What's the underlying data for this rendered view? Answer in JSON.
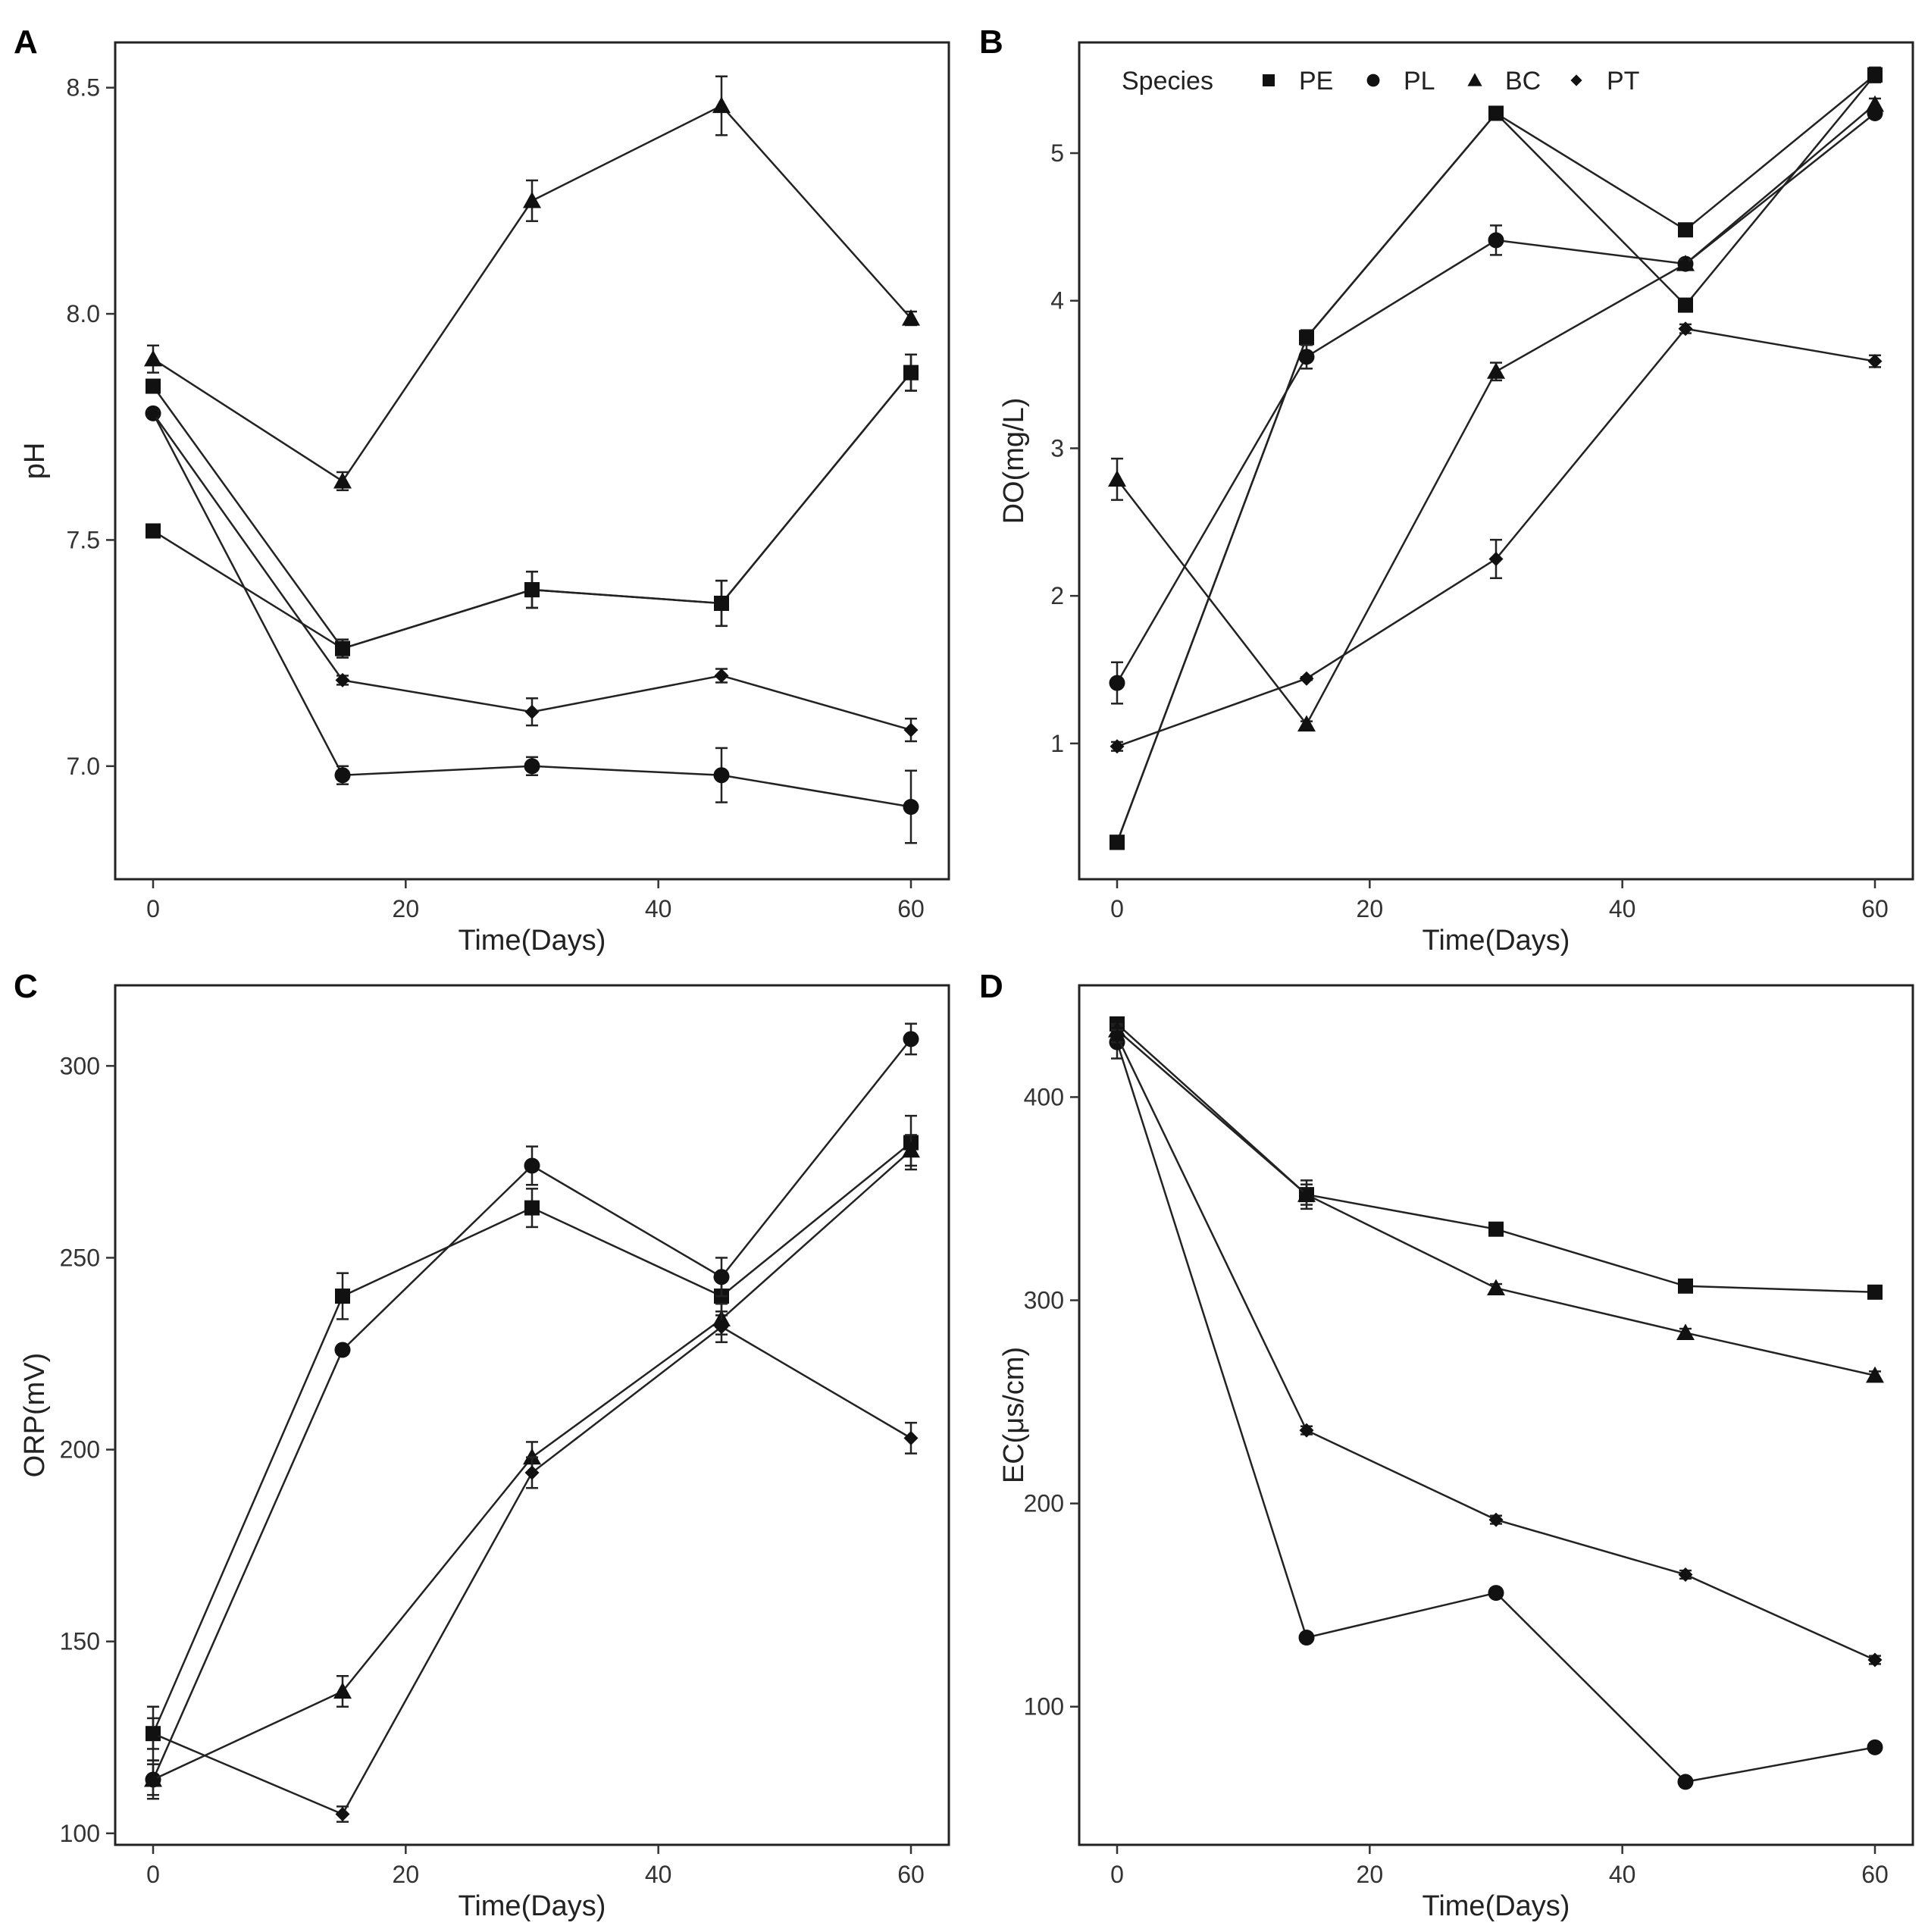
{
  "figure": {
    "species_legend": {
      "title": "Species",
      "entries": [
        {
          "label": "PE",
          "marker": "square"
        },
        {
          "label": "PL",
          "marker": "circle"
        },
        {
          "label": "BC",
          "marker": "triangle"
        },
        {
          "label": "PT",
          "marker": "diamond"
        }
      ]
    }
  },
  "chart_data": [
    {
      "panel": "A",
      "type": "line",
      "xlabel": "Time(Days)",
      "ylabel": "pH",
      "xlim": [
        -3,
        63
      ],
      "ylim": [
        6.75,
        8.6
      ],
      "xticks": [
        0,
        20,
        40,
        60
      ],
      "yticks": [
        7.0,
        7.5,
        8.0,
        8.5
      ],
      "ytick_labels": [
        "7.0",
        "7.5",
        "8.0",
        "8.5"
      ],
      "x": [
        0,
        15,
        30,
        45,
        60
      ],
      "legend_shown": false,
      "series": [
        {
          "name": "PE",
          "marker": "square",
          "values": [
            7.52,
            7.26,
            7.39,
            7.36,
            7.87
          ],
          "err": [
            0.01,
            0.02,
            0.04,
            0.05,
            0.04
          ]
        },
        {
          "name": "PE",
          "marker": "square",
          "values": [
            7.84,
            7.26,
            7.39,
            7.36,
            7.87
          ],
          "err": [
            0.01,
            0.02,
            0.04,
            0.05,
            0.04
          ]
        },
        {
          "name": "PL",
          "marker": "circle",
          "values": [
            7.78,
            6.98,
            7.0,
            6.98,
            6.91
          ],
          "err": [
            0.005,
            0.02,
            0.02,
            0.06,
            0.08
          ]
        },
        {
          "name": "BC",
          "marker": "triangle",
          "values": [
            7.9,
            7.63,
            8.25,
            8.46,
            7.99
          ],
          "err": [
            0.03,
            0.02,
            0.045,
            0.065,
            0.015
          ]
        },
        {
          "name": "PT",
          "marker": "diamond",
          "values": [
            7.78,
            7.19,
            7.12,
            7.2,
            7.08
          ],
          "err": [
            0.005,
            0.01,
            0.03,
            0.015,
            0.025
          ]
        }
      ]
    },
    {
      "panel": "B",
      "type": "line",
      "xlabel": "Time(Days)",
      "ylabel": "DO(mg/L)",
      "xlim": [
        -3,
        63
      ],
      "ylim": [
        0.08,
        5.75
      ],
      "xticks": [
        0,
        20,
        40,
        60
      ],
      "yticks": [
        1,
        2,
        3,
        4,
        5
      ],
      "ytick_labels": [
        "1",
        "2",
        "3",
        "4",
        "5"
      ],
      "x": [
        0,
        15,
        30,
        45,
        60
      ],
      "legend_shown": true,
      "series": [
        {
          "name": "PE",
          "marker": "square",
          "values": [
            0.33,
            3.75,
            5.27,
            3.97,
            5.53
          ],
          "err": [
            0.02,
            0.05,
            0.03,
            0.02,
            0.05
          ]
        },
        {
          "name": "PE",
          "marker": "square",
          "values": [
            0.33,
            3.75,
            5.27,
            4.48,
            5.53
          ],
          "err": [
            0.02,
            0.05,
            0.03,
            0.04,
            0.05
          ]
        },
        {
          "name": "PL",
          "marker": "circle",
          "values": [
            1.41,
            3.62,
            4.41,
            4.25,
            5.27
          ],
          "err": [
            0.14,
            0.08,
            0.1,
            0.03,
            0.02
          ]
        },
        {
          "name": "BC",
          "marker": "triangle",
          "values": [
            2.79,
            1.13,
            3.52,
            4.25,
            5.33
          ],
          "err": [
            0.14,
            0.02,
            0.06,
            0.03,
            0.04
          ]
        },
        {
          "name": "PT",
          "marker": "diamond",
          "values": [
            0.98,
            1.44,
            2.25,
            3.81,
            3.59
          ],
          "err": [
            0.03,
            0.01,
            0.13,
            0.03,
            0.04
          ]
        }
      ]
    },
    {
      "panel": "C",
      "type": "line",
      "xlabel": "Time(Days)",
      "ylabel": "ORP(mV)",
      "xlim": [
        -3,
        63
      ],
      "ylim": [
        97,
        321
      ],
      "xticks": [
        0,
        20,
        40,
        60
      ],
      "yticks": [
        100,
        150,
        200,
        250,
        300
      ],
      "ytick_labels": [
        "100",
        "150",
        "200",
        "250",
        "300"
      ],
      "x": [
        0,
        15,
        30,
        45,
        60
      ],
      "legend_shown": false,
      "series": [
        {
          "name": "PE",
          "marker": "square",
          "values": [
            126,
            240,
            263,
            240,
            280
          ],
          "err": [
            7,
            6,
            5,
            5,
            7
          ]
        },
        {
          "name": "PL",
          "marker": "circle",
          "values": [
            114,
            226,
            274,
            245,
            307
          ],
          "err": [
            5,
            1,
            5,
            5,
            4
          ]
        },
        {
          "name": "BC",
          "marker": "triangle",
          "values": [
            114,
            137,
            198,
            234,
            278
          ],
          "err": [
            4,
            4,
            4,
            4,
            4
          ]
        },
        {
          "name": "PT",
          "marker": "diamond",
          "values": [
            126,
            105,
            194,
            232,
            203
          ],
          "err": [
            4,
            2,
            4,
            4,
            4
          ]
        }
      ]
    },
    {
      "panel": "D",
      "type": "line",
      "xlabel": "Time(Days)",
      "ylabel": "EC(μs/cm)",
      "xlim": [
        -3,
        63
      ],
      "ylim": [
        32,
        455
      ],
      "xticks": [
        0,
        20,
        40,
        60
      ],
      "yticks": [
        100,
        200,
        300,
        400
      ],
      "ytick_labels": [
        "100",
        "200",
        "300",
        "400"
      ],
      "x": [
        0,
        15,
        30,
        45,
        60
      ],
      "legend_shown": false,
      "series": [
        {
          "name": "PE",
          "marker": "square",
          "values": [
            436,
            352,
            335,
            307,
            304
          ],
          "err": [
            3,
            5,
            2,
            2,
            2
          ]
        },
        {
          "name": "PL",
          "marker": "circle",
          "values": [
            427,
            134,
            156,
            63,
            80
          ],
          "err": [
            8,
            2,
            2,
            2,
            2
          ]
        },
        {
          "name": "BC",
          "marker": "triangle",
          "values": [
            433,
            352,
            306,
            284,
            263
          ],
          "err": [
            3,
            7,
            2,
            2,
            2
          ]
        },
        {
          "name": "PT",
          "marker": "diamond",
          "values": [
            430,
            236,
            192,
            165,
            123
          ],
          "err": [
            3,
            2,
            2,
            2,
            2
          ]
        }
      ]
    }
  ]
}
